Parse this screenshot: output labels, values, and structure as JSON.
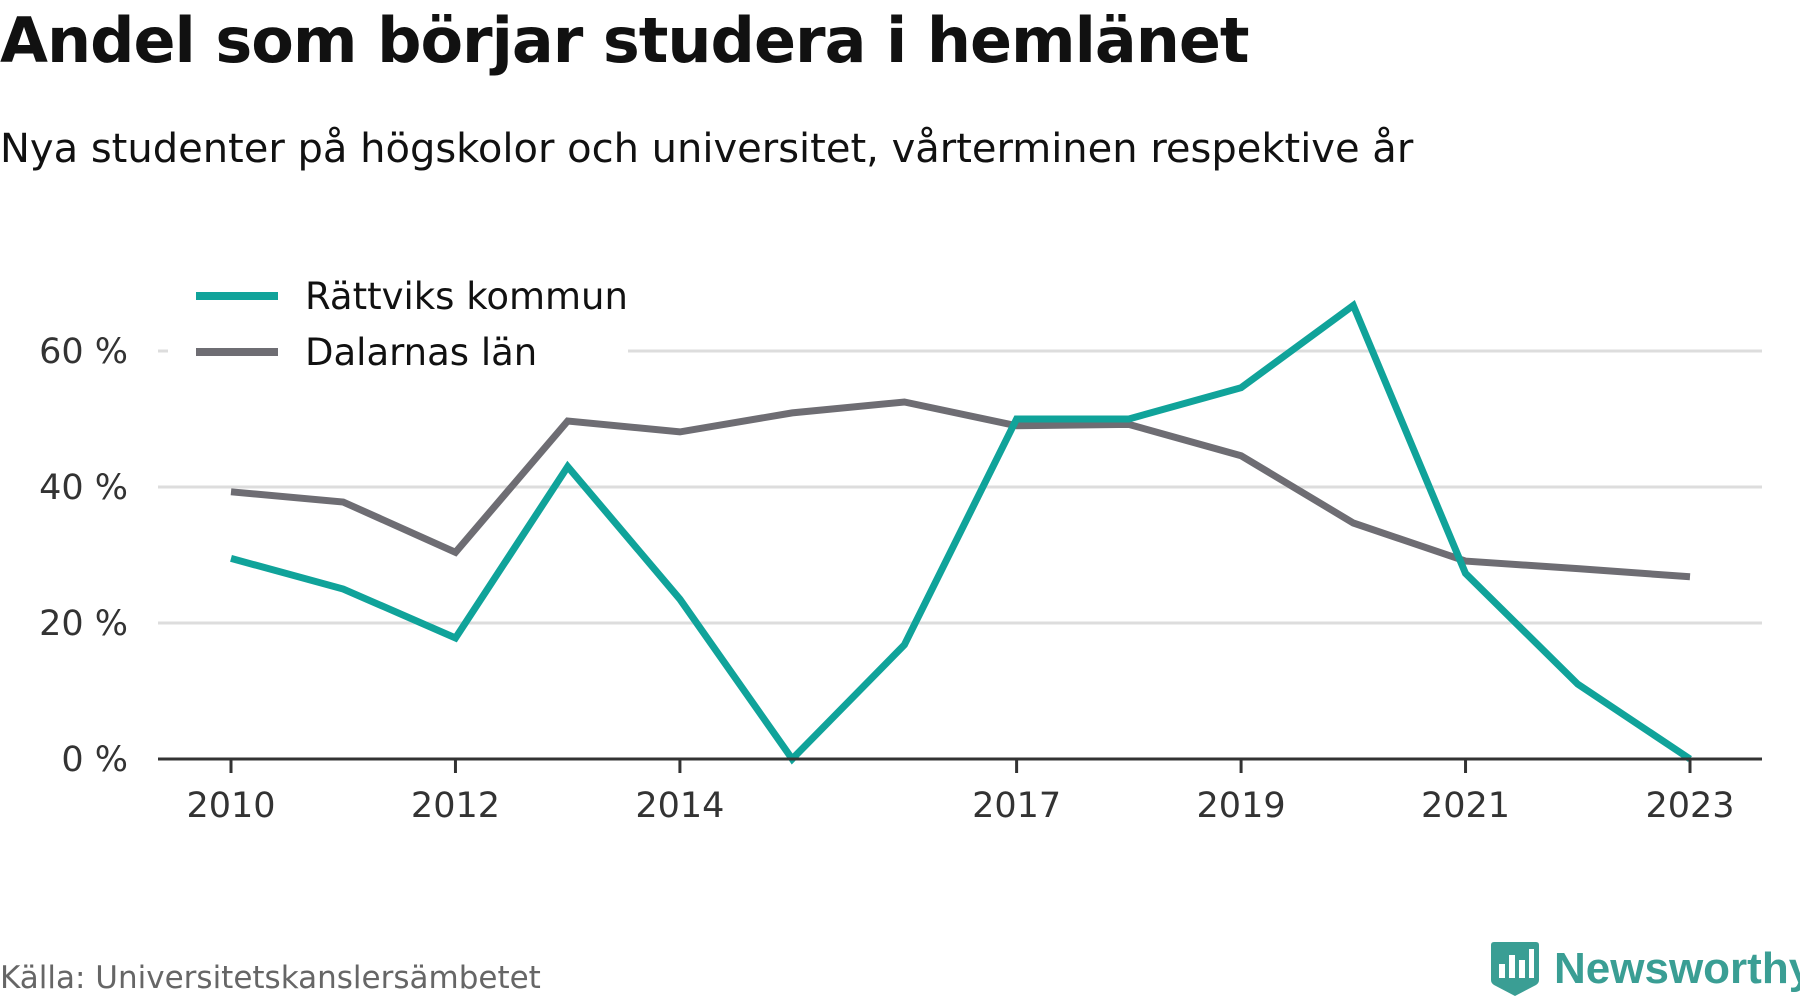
{
  "chart_data": {
    "type": "line",
    "title": "Andel som börjar studera i hemlänet",
    "subtitle": "Nya studenter på högskolor och universitet, vårterminen respektive år",
    "x": [
      2010,
      2011,
      2012,
      2013,
      2014,
      2015,
      2016,
      2017,
      2018,
      2019,
      2020,
      2021,
      2022,
      2023
    ],
    "x_ticks": [
      2010,
      2012,
      2014,
      2017,
      2019,
      2021,
      2023
    ],
    "y_ticks": [
      0,
      20,
      40,
      60
    ],
    "y_tick_labels": [
      "0 %",
      "20 %",
      "40 %",
      "60 %"
    ],
    "ylim": [
      0,
      67
    ],
    "xlabel": "",
    "ylabel": "",
    "grid": true,
    "legend": "top-left",
    "series": [
      {
        "name": "Rättviks kommun",
        "color": "#10a39a",
        "values": [
          29.5,
          25,
          17.8,
          43,
          23.5,
          0,
          16.8,
          50,
          50,
          54.6,
          66.7,
          27.3,
          11,
          0
        ]
      },
      {
        "name": "Dalarnas län",
        "color": "#6e6d73",
        "values": [
          39.3,
          37.8,
          30.4,
          49.7,
          48.1,
          50.9,
          52.5,
          49,
          49.2,
          44.6,
          34.7,
          29.1,
          28,
          26.8
        ]
      }
    ]
  },
  "source": "Källa: Universitetskanslersämbetet",
  "logo": {
    "text": "Newsworthy",
    "icon": "newsworthy-logo-icon",
    "color": "#3a9e94"
  },
  "colors": {
    "grid": "#dddddd",
    "axis": "#333333"
  }
}
